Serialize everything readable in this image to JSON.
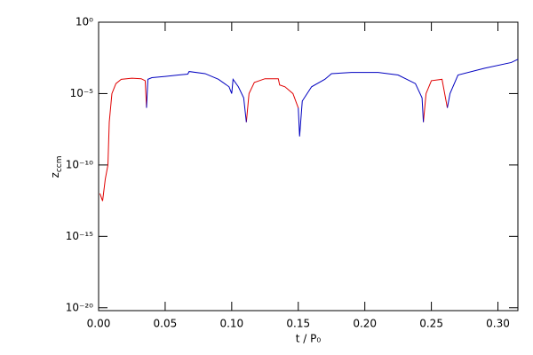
{
  "chart_data": {
    "type": "line",
    "xlabel": "t / P₀",
    "ylabel": {
      "main": "z",
      "sub": "ccm"
    },
    "log_y": true,
    "x": [
      0.001,
      0.003,
      0.005,
      0.007,
      0.008,
      0.01,
      0.013,
      0.017,
      0.025,
      0.032,
      0.035,
      0.036,
      0.037,
      0.04,
      0.05,
      0.06,
      0.067,
      0.068,
      0.08,
      0.09,
      0.098,
      0.1,
      0.101,
      0.105,
      0.109,
      0.111,
      0.113,
      0.117,
      0.125,
      0.135,
      0.136,
      0.14,
      0.146,
      0.15,
      0.151,
      0.153,
      0.16,
      0.17,
      0.175,
      0.19,
      0.21,
      0.225,
      0.238,
      0.243,
      0.244,
      0.246,
      0.25,
      0.258,
      0.262,
      0.264,
      0.27,
      0.29,
      0.31,
      0.315
    ],
    "series": [
      {
        "color": "#e00000",
        "values": [
          1e-12,
          3e-13,
          1e-11,
          1e-10,
          1e-07,
          1e-05,
          5e-05,
          0.0001,
          0.00012,
          0.00011,
          8e-05,
          1e-06,
          null,
          null,
          null,
          null,
          null,
          null,
          null,
          null,
          null,
          null,
          null,
          null,
          null,
          1e-07,
          1e-05,
          6e-05,
          0.00011,
          0.00011,
          4e-05,
          3e-05,
          1e-05,
          1e-06,
          null,
          null,
          null,
          null,
          null,
          null,
          null,
          null,
          null,
          null,
          1e-07,
          1e-05,
          8e-05,
          0.0001,
          1e-06,
          null,
          null,
          null,
          null,
          null
        ]
      },
      {
        "color": "#0000c0",
        "values": [
          null,
          null,
          null,
          null,
          null,
          null,
          null,
          null,
          null,
          null,
          null,
          1e-06,
          0.0001,
          0.00013,
          0.00016,
          0.0002,
          0.00023,
          0.00035,
          0.00025,
          0.0001,
          3e-05,
          1e-05,
          0.0001,
          3e-05,
          5e-06,
          1e-07,
          null,
          null,
          null,
          null,
          null,
          null,
          null,
          1e-06,
          1e-08,
          3e-06,
          3e-05,
          0.0001,
          0.00025,
          0.0003,
          0.0003,
          0.0002,
          5e-05,
          5e-06,
          1e-07,
          null,
          null,
          null,
          1e-06,
          1e-05,
          0.0002,
          0.0006,
          0.0015,
          0.0025
        ]
      }
    ],
    "xlim": [
      0,
      0.315
    ],
    "ylim": [
      6.3e-21,
      1
    ],
    "xticks": [
      {
        "value": 0,
        "label": "0.00"
      },
      0.05,
      {
        "value": 0.1,
        "label": "0.10"
      },
      0.15,
      {
        "value": 0.2,
        "label": "0.20"
      },
      0.25,
      {
        "value": 0.3,
        "label": "0.30"
      }
    ],
    "yticks": [
      {
        "value": 1e-20,
        "label": "10⁻²⁰"
      },
      {
        "value": 1e-15,
        "label": "10⁻¹⁵"
      },
      {
        "value": 1e-10,
        "label": "10⁻¹⁰"
      },
      {
        "value": 1e-05,
        "label": "10⁻⁵"
      },
      {
        "value": 1,
        "label": "10⁰"
      }
    ]
  }
}
